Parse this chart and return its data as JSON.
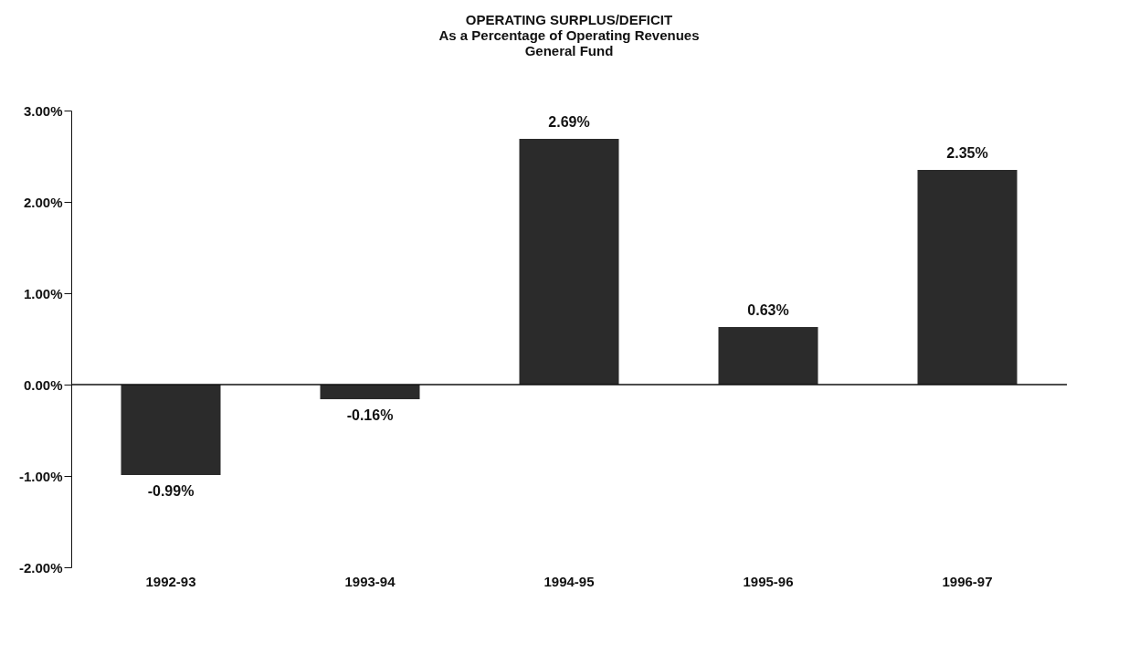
{
  "chart_data": {
    "type": "bar",
    "title": "OPERATING SURPLUS/DEFICIT\nAs a Percentage of Operating Revenues\nGeneral Fund",
    "categories": [
      "1992-93",
      "1993-94",
      "1994-95",
      "1995-96",
      "1996-97"
    ],
    "values": [
      -0.99,
      -0.16,
      2.69,
      0.63,
      2.35
    ],
    "value_labels": [
      "-0.99%",
      "-0.16%",
      "2.69%",
      "0.63%",
      "2.35%"
    ],
    "color": "#2b2b2b",
    "ylim": [
      -2,
      3
    ],
    "yticks": [
      {
        "value": -2,
        "label": "-2.00%"
      },
      {
        "value": -1,
        "label": "-1.00%"
      },
      {
        "value": 0,
        "label": "0.00%"
      },
      {
        "value": 1,
        "label": "1.00%"
      },
      {
        "value": 2,
        "label": "2.00%"
      },
      {
        "value": 3,
        "label": "3.00%"
      }
    ],
    "ref_lines": [
      {
        "axis": "y",
        "value": 0,
        "color": "#111111"
      }
    ],
    "grid": false
  }
}
